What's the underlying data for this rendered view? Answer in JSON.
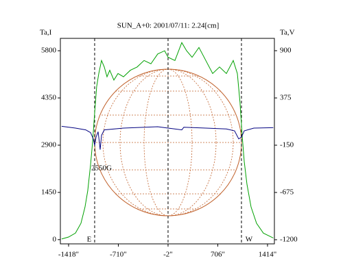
{
  "chart_data": {
    "type": "line",
    "title": "SUN_A+0: 2001/07/11: 2.24[cm]",
    "y_label": "Ta,I",
    "y2_label": "Ta,V",
    "xlim": [
      -1535,
      1512
    ],
    "ylim": [
      -130,
      6180
    ],
    "y2lim": [
      -1246,
      1037
    ],
    "xticks": [
      {
        "value": -1418,
        "label": "-1418\""
      },
      {
        "value": -710,
        "label": "-710\""
      },
      {
        "value": -2,
        "label": "-2\""
      },
      {
        "value": 706,
        "label": "706\""
      },
      {
        "value": 1414,
        "label": "1414\""
      }
    ],
    "yticks": [
      0,
      1450,
      2900,
      4350,
      5800
    ],
    "y2ticks": [
      -1200,
      -675,
      -150,
      375,
      900
    ],
    "series": [
      {
        "name": "I",
        "color": "#00a000",
        "x": [
          -1516,
          -1418,
          -1320,
          -1242,
          -1184,
          -1145,
          -1105,
          -1076,
          -1047,
          -1018,
          -988,
          -949,
          -910,
          -871,
          -832,
          -773,
          -715,
          -637,
          -539,
          -442,
          -344,
          -246,
          -149,
          -51,
          -2,
          96,
          194,
          262,
          340,
          438,
          535,
          633,
          731,
          828,
          926,
          985,
          1023,
          1053,
          1082,
          1121,
          1180,
          1258,
          1355,
          1496
        ],
        "values": [
          20,
          80,
          200,
          500,
          1000,
          1500,
          2300,
          3000,
          3900,
          4700,
          5100,
          5500,
          5300,
          5000,
          5200,
          4900,
          5100,
          5000,
          5200,
          5300,
          5500,
          5400,
          5700,
          5800,
          5600,
          5500,
          6050,
          5800,
          5600,
          5900,
          5500,
          5100,
          5300,
          5100,
          5500,
          5100,
          4200,
          3200,
          2400,
          1700,
          1000,
          500,
          200,
          50
        ]
      },
      {
        "name": "V",
        "color": "#000080",
        "axis": "y2",
        "x": [
          -1516,
          -1320,
          -1174,
          -1105,
          -1066,
          -1047,
          -1027,
          -998,
          -979,
          -969,
          -949,
          -910,
          -637,
          -149,
          -2,
          194,
          223,
          535,
          828,
          945,
          1004,
          1043,
          1082,
          1219,
          1496
        ],
        "values": [
          60,
          40,
          20,
          -10,
          -80,
          -150,
          -60,
          0,
          -120,
          -200,
          -40,
          20,
          40,
          55,
          40,
          20,
          50,
          40,
          30,
          10,
          -80,
          -60,
          10,
          40,
          45
        ]
      }
    ],
    "vlines": [
      -1047,
      -2,
      1043
    ],
    "annotations": [
      {
        "text": "E",
        "x": -1125,
        "y": 0
      },
      {
        "text": "W",
        "x": 1150,
        "y": 0
      },
      {
        "text": "2550G",
        "x": -949,
        "y": 2185
      }
    ]
  }
}
